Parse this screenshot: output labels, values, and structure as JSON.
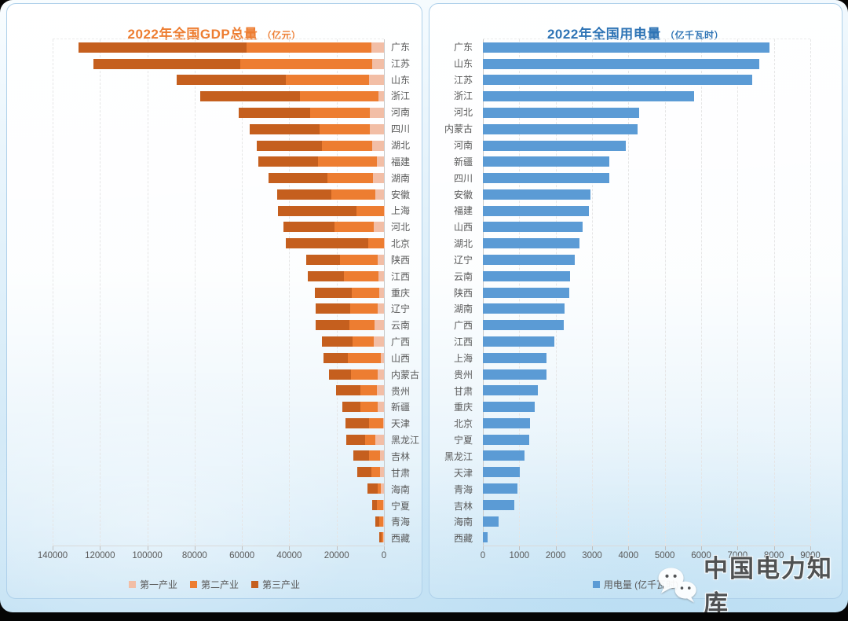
{
  "charts": {
    "gdp": {
      "title": "2022年全国GDP总量",
      "unit": "（亿元）"
    },
    "power": {
      "title": "2022年全国用电量",
      "unit": "（亿千瓦时）"
    }
  },
  "watermark": {
    "icon": "wechat-icon",
    "text": "中国电力知库"
  },
  "colors": {
    "gdp_title": "#ED7D31",
    "power_title": "#2E74B5",
    "primary_industry": "#F2BEA6",
    "secondary_industry": "#ED7D31",
    "tertiary_industry": "#C55F1E",
    "power_bar": "#5B9BD5",
    "label_gray": "#595959"
  },
  "chart_data": [
    {
      "id": "gdp",
      "type": "bar",
      "orientation": "horizontal",
      "stacked": true,
      "axis_reversed": true,
      "title": "2022年全国GDP总量（亿元）",
      "xlim": [
        0,
        140000
      ],
      "xticks": [
        140000,
        120000,
        100000,
        80000,
        60000,
        40000,
        20000,
        0
      ],
      "grid": true,
      "legend_position": "bottom",
      "categories": [
        "广东",
        "江苏",
        "山东",
        "浙江",
        "河南",
        "四川",
        "湖北",
        "福建",
        "湖南",
        "安徽",
        "上海",
        "河北",
        "北京",
        "陕西",
        "江西",
        "重庆",
        "辽宁",
        "云南",
        "广西",
        "山西",
        "内蒙古",
        "贵州",
        "新疆",
        "天津",
        "黑龙江",
        "吉林",
        "甘肃",
        "海南",
        "宁夏",
        "青海",
        "西藏"
      ],
      "series": [
        {
          "name": "第一产业",
          "color": "#F2BEA6",
          "values": [
            5340,
            4959,
            6299,
            2325,
            5818,
            5964,
            4987,
            3076,
            4603,
            3514,
            96,
            4410,
            112,
            2575,
            2452,
            2012,
            2598,
            4012,
            4270,
            1340,
            2654,
            2861,
            2509,
            274,
            3618,
            1700,
            1515,
            1418,
            411,
            387,
            184
          ]
        },
        {
          "name": "第二产业",
          "color": "#ED7D31",
          "values": [
            52844,
            55889,
            35014,
            33250,
            25465,
            21157,
            21241,
            24659,
            19182,
            18588,
            11458,
            16632,
            6605,
            15935,
            14360,
            11694,
            11756,
            10471,
            8932,
            13817,
            11419,
            7114,
            7354,
            6039,
            4428,
            4551,
            3947,
            1311,
            2449,
            1585,
            790
          ]
        },
        {
          "name": "第三产业",
          "color": "#C55F1E",
          "values": [
            70936,
            62028,
            46122,
            42141,
            30062,
            29629,
            27507,
            25375,
            24885,
            22943,
            33098,
            21328,
            34895,
            14264,
            15264,
            15423,
            14621,
            14471,
            13099,
            10485,
            9087,
            10190,
            7878,
            9999,
            7855,
            6820,
            5739,
            4090,
            2210,
            1638,
            1159
          ]
        }
      ]
    },
    {
      "id": "power",
      "type": "bar",
      "orientation": "horizontal",
      "stacked": false,
      "axis_reversed": false,
      "title": "2022年全国用电量（亿千瓦时）",
      "xlim": [
        0,
        9000
      ],
      "xticks": [
        0,
        1000,
        2000,
        3000,
        4000,
        5000,
        6000,
        7000,
        8000,
        9000
      ],
      "grid": true,
      "legend_position": "bottom",
      "categories": [
        "广东",
        "山东",
        "江苏",
        "浙江",
        "河北",
        "内蒙古",
        "河南",
        "新疆",
        "四川",
        "安徽",
        "福建",
        "山西",
        "湖北",
        "辽宁",
        "云南",
        "陕西",
        "湖南",
        "广西",
        "江西",
        "上海",
        "贵州",
        "甘肃",
        "重庆",
        "北京",
        "宁夏",
        "黑龙江",
        "天津",
        "青海",
        "吉林",
        "海南",
        "西藏"
      ],
      "series": [
        {
          "name": "用电量 (亿千瓦时)",
          "color": "#5B9BD5",
          "values": [
            7870,
            7600,
            7400,
            5800,
            4300,
            4250,
            3920,
            3480,
            3474,
            2960,
            2910,
            2740,
            2665,
            2530,
            2390,
            2372,
            2236,
            2216,
            1974,
            1756,
            1749,
            1520,
            1415,
            1300,
            1270,
            1150,
            1010,
            943,
            865,
            432,
            125
          ]
        }
      ]
    }
  ]
}
